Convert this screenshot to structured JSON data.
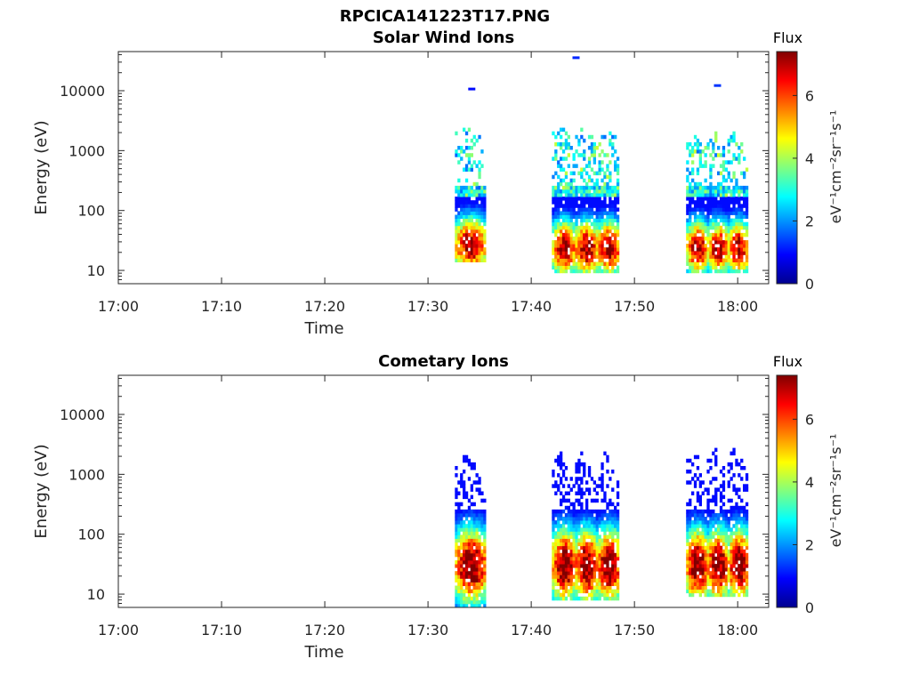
{
  "figure": {
    "title": "RPCICA141223T17.PNG"
  },
  "colors": {
    "colormap": "jet",
    "axis": "#262626",
    "background": "#ffffff"
  },
  "chart_data": [
    {
      "type": "heatmap",
      "title": "Solar Wind Ions",
      "xlabel": "Time",
      "ylabel": "Energy (eV)",
      "xlim": [
        "17:00",
        "18:03"
      ],
      "xticks": [
        "17:00",
        "17:10",
        "17:20",
        "17:30",
        "17:40",
        "17:50",
        "18:00"
      ],
      "yscale": "log",
      "ylim": [
        6,
        45000
      ],
      "yticks": [
        "10",
        "100",
        "1000",
        "10000"
      ],
      "colorbar": {
        "label": "Flux",
        "units": "eV⁻¹cm⁻²sr⁻¹s⁻¹",
        "range": [
          0,
          7.4
        ],
        "ticks": [
          "0",
          "2",
          "4",
          "6"
        ]
      },
      "blocks": [
        {
          "time_start": "17:32.6",
          "time_end": "17:35.5",
          "energy_min": 13,
          "energy_max": 2500,
          "flux_peak": 6.6,
          "peak_energy": 25
        },
        {
          "time_start": "17:42.0",
          "time_end": "17:48.5",
          "energy_min": 8,
          "energy_max": 2500,
          "flux_peak": 6.6,
          "peak_energy": 22
        },
        {
          "time_start": "17:55.0",
          "time_end": "18:01.0",
          "energy_min": 8,
          "energy_max": 2000,
          "flux_peak": 6.4,
          "peak_energy": 22
        }
      ],
      "sparse_points": [
        {
          "time": "17:33.9",
          "energy": 10500,
          "flux": 1.0
        },
        {
          "time": "17:44.0",
          "energy": 35000,
          "flux": 1.2
        },
        {
          "time": "17:57.7",
          "energy": 12000,
          "flux": 1.3
        }
      ]
    },
    {
      "type": "heatmap",
      "title": "Cometary Ions",
      "xlabel": "Time",
      "ylabel": "Energy (eV)",
      "xlim": [
        "17:00",
        "18:03"
      ],
      "xticks": [
        "17:00",
        "17:10",
        "17:20",
        "17:30",
        "17:40",
        "17:50",
        "18:00"
      ],
      "yscale": "log",
      "ylim": [
        6,
        45000
      ],
      "yticks": [
        "10",
        "100",
        "1000",
        "10000"
      ],
      "colorbar": {
        "label": "Flux",
        "units": "eV⁻¹cm⁻²sr⁻¹s⁻¹",
        "range": [
          0,
          7.4
        ],
        "ticks": [
          "0",
          "2",
          "4",
          "6"
        ]
      },
      "blocks": [
        {
          "time_start": "17:32.6",
          "time_end": "17:35.5",
          "energy_min": 6,
          "energy_max": 2500,
          "flux_peak": 7.1,
          "peak_energy": 28
        },
        {
          "time_start": "17:42.0",
          "time_end": "17:48.5",
          "energy_min": 7,
          "energy_max": 2300,
          "flux_peak": 7.0,
          "peak_energy": 28
        },
        {
          "time_start": "17:55.0",
          "time_end": "18:01.0",
          "energy_min": 8,
          "energy_max": 3000,
          "flux_peak": 7.0,
          "peak_energy": 28
        }
      ],
      "sparse_points": []
    }
  ]
}
